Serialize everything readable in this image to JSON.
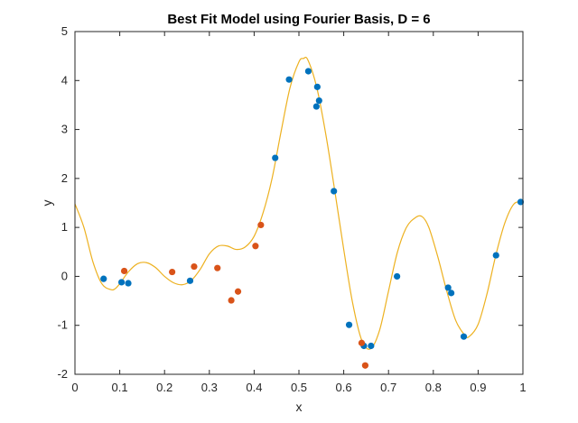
{
  "chart_data": {
    "type": "scatter",
    "title": "Best Fit Model using Fourier Basis, D = 6",
    "xlabel": "x",
    "ylabel": "y",
    "xlim": [
      0,
      1
    ],
    "ylim": [
      -2,
      5
    ],
    "xticks": [
      "0",
      "0.1",
      "0.2",
      "0.3",
      "0.4",
      "0.5",
      "0.6",
      "0.7",
      "0.8",
      "0.9",
      "1"
    ],
    "yticks": [
      "-2",
      "-1",
      "0",
      "1",
      "2",
      "3",
      "4",
      "5"
    ],
    "grid": false,
    "colors": {
      "series_blue": "#0072BD",
      "series_orange": "#D95319",
      "fit_curve": "#EDB120",
      "axis": "#262626"
    },
    "series": [
      {
        "color": "#0072BD",
        "points": [
          [
            0.064,
            -0.05
          ],
          [
            0.104,
            -0.12
          ],
          [
            0.119,
            -0.14
          ],
          [
            0.257,
            -0.09
          ],
          [
            0.447,
            2.42
          ],
          [
            0.478,
            4.02
          ],
          [
            0.521,
            4.19
          ],
          [
            0.539,
            3.47
          ],
          [
            0.541,
            3.87
          ],
          [
            0.545,
            3.59
          ],
          [
            0.578,
            1.74
          ],
          [
            0.612,
            -0.99
          ],
          [
            0.645,
            -1.42
          ],
          [
            0.661,
            -1.42
          ],
          [
            0.719,
            0.0
          ],
          [
            0.833,
            -0.23
          ],
          [
            0.84,
            -0.34
          ],
          [
            0.868,
            -1.23
          ],
          [
            0.94,
            0.43
          ],
          [
            0.995,
            1.52
          ]
        ]
      },
      {
        "color": "#D95319",
        "points": [
          [
            0.11,
            0.11
          ],
          [
            0.217,
            0.09
          ],
          [
            0.266,
            0.2
          ],
          [
            0.318,
            0.17
          ],
          [
            0.349,
            -0.49
          ],
          [
            0.364,
            -0.31
          ],
          [
            0.403,
            0.62
          ],
          [
            0.415,
            1.05
          ],
          [
            0.64,
            -1.36
          ],
          [
            0.648,
            -1.82
          ]
        ]
      },
      {
        "type": "line",
        "color": "#EDB120",
        "x": [
          0,
          0.02,
          0.04,
          0.06,
          0.08,
          0.09,
          0.1,
          0.12,
          0.14,
          0.16,
          0.18,
          0.2,
          0.22,
          0.24,
          0.26,
          0.28,
          0.3,
          0.32,
          0.34,
          0.36,
          0.38,
          0.4,
          0.42,
          0.44,
          0.46,
          0.48,
          0.5,
          0.51,
          0.52,
          0.54,
          0.56,
          0.58,
          0.6,
          0.62,
          0.64,
          0.66,
          0.68,
          0.7,
          0.72,
          0.74,
          0.76,
          0.775,
          0.79,
          0.81,
          0.83,
          0.85,
          0.87,
          0.88,
          0.9,
          0.92,
          0.94,
          0.96,
          0.98,
          1.0
        ],
        "y": [
          1.48,
          1.0,
          0.3,
          -0.15,
          -0.27,
          -0.25,
          -0.15,
          0.1,
          0.26,
          0.28,
          0.18,
          0.0,
          -0.13,
          -0.17,
          -0.08,
          0.15,
          0.46,
          0.62,
          0.62,
          0.55,
          0.6,
          0.82,
          1.3,
          2.0,
          2.95,
          3.85,
          4.38,
          4.45,
          4.42,
          3.85,
          2.9,
          1.75,
          0.55,
          -0.55,
          -1.3,
          -1.48,
          -1.1,
          -0.3,
          0.5,
          1.0,
          1.2,
          1.22,
          1.0,
          0.4,
          -0.3,
          -0.9,
          -1.2,
          -1.23,
          -0.98,
          -0.35,
          0.45,
          1.1,
          1.48,
          1.52
        ]
      }
    ]
  }
}
